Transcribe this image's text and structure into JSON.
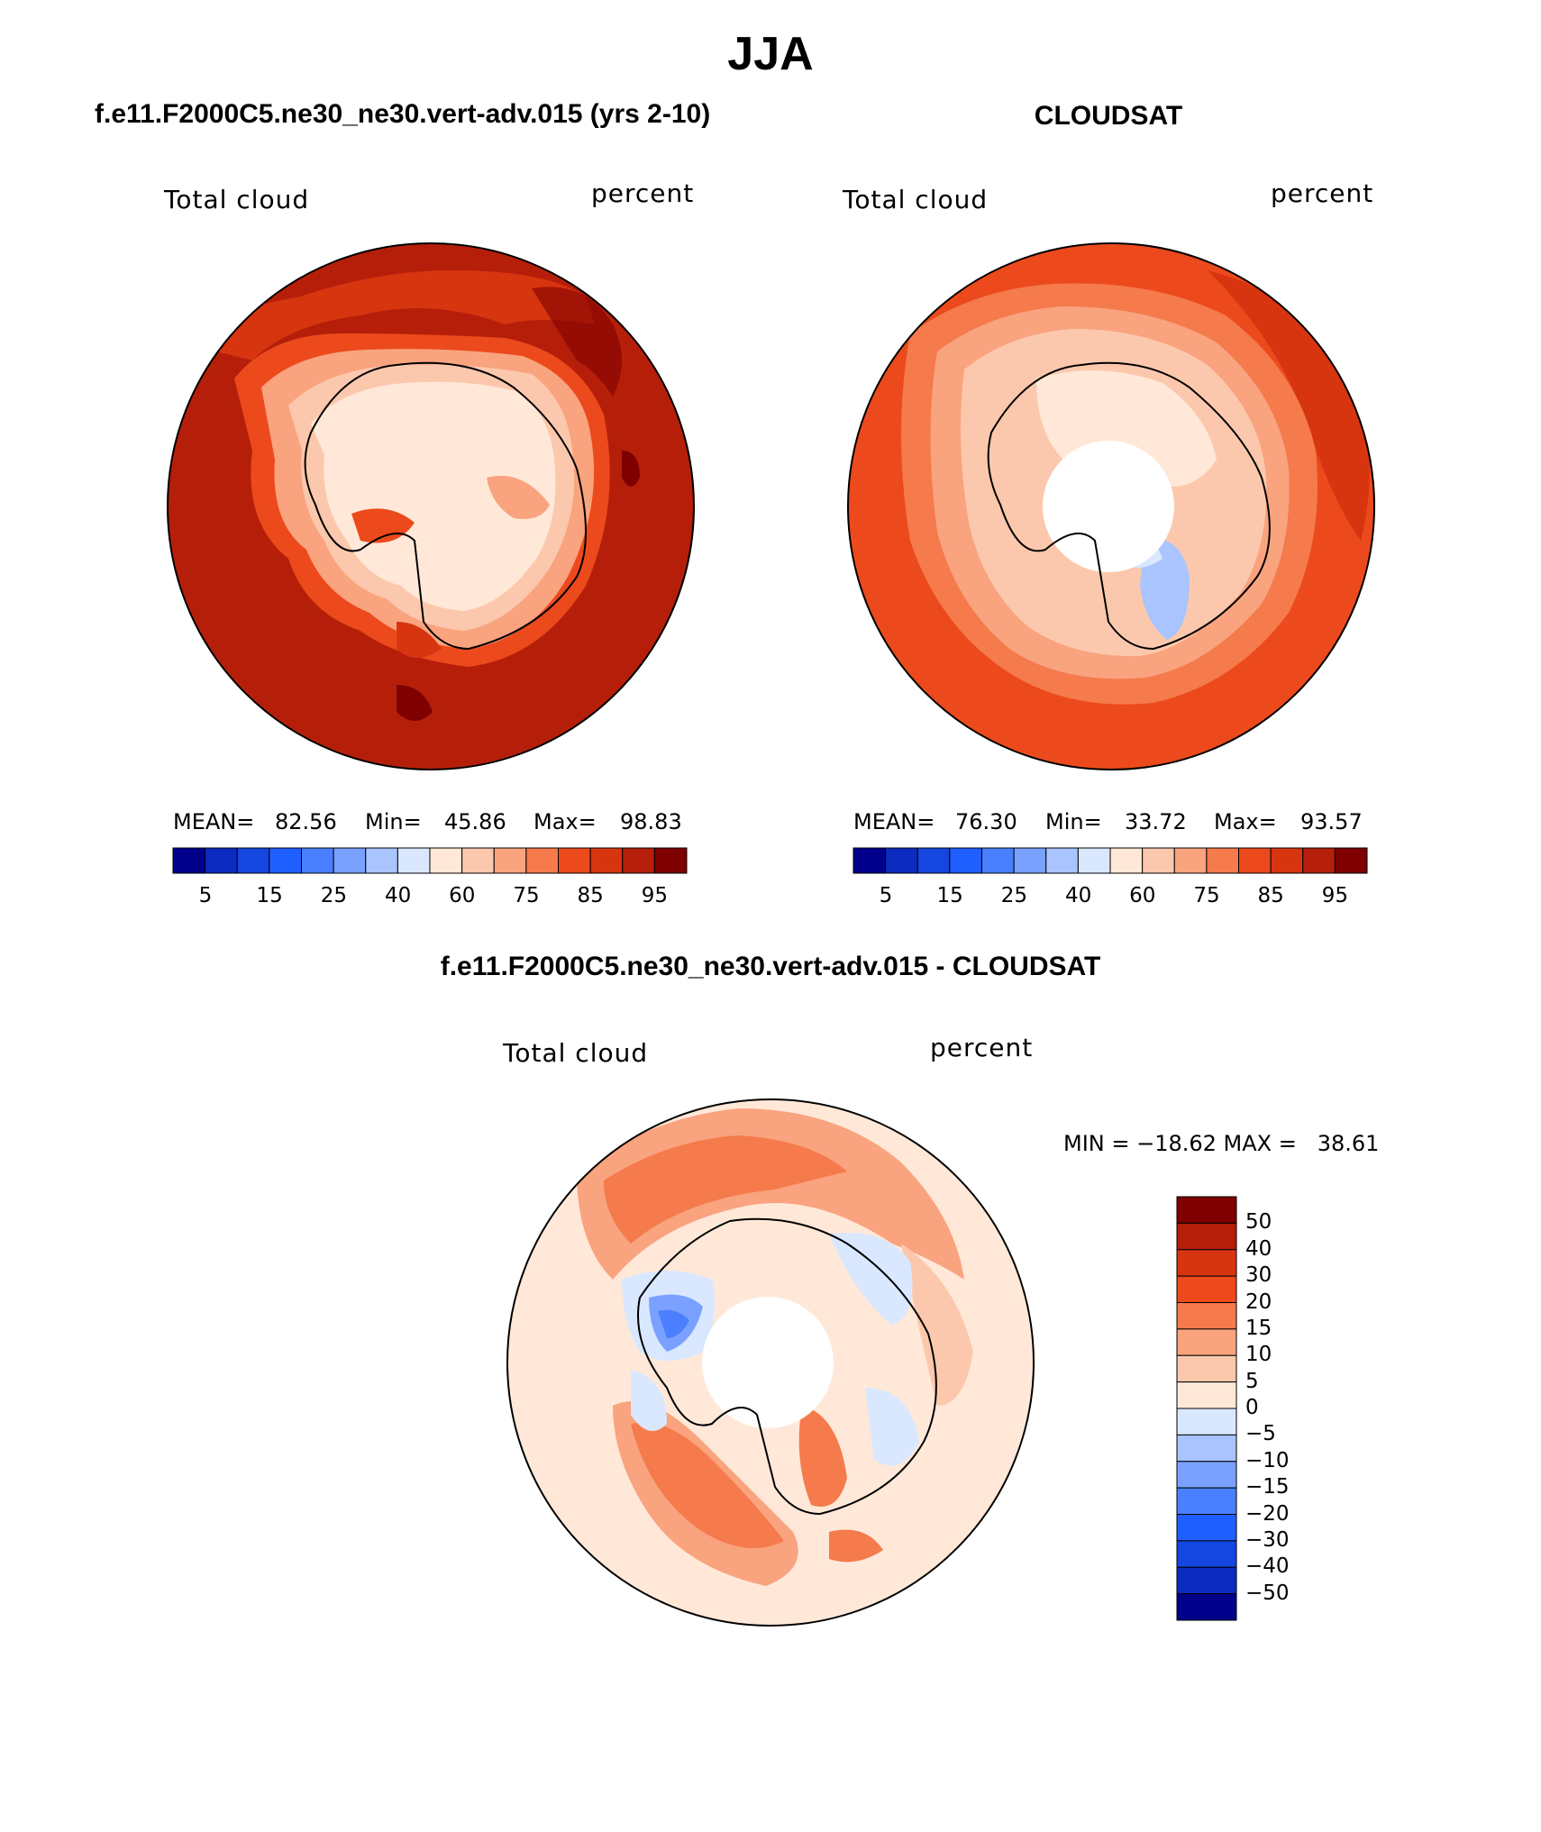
{
  "main_title": "JJA",
  "panel_left": {
    "title": "f.e11.F2000C5.ne30_ne30.vert-adv.015 (yrs 2-10)",
    "variable": "Total cloud",
    "units": "percent",
    "mean_label": "MEAN=",
    "mean": "82.56",
    "min_label": "Min=",
    "min": "45.86",
    "max_label": "Max=",
    "max": "98.83"
  },
  "panel_right": {
    "title": "CLOUDSAT",
    "variable": "Total cloud",
    "units": "percent",
    "mean_label": "MEAN=",
    "mean": "76.30",
    "min_label": "Min=",
    "min": "33.72",
    "max_label": "Max=",
    "max": "93.57"
  },
  "panel_diff": {
    "title": "f.e11.F2000C5.ne30_ne30.vert-adv.015 - CLOUDSAT",
    "variable": "Total cloud",
    "units": "percent",
    "minmax": "MIN = −18.62 MAX =   38.61"
  },
  "colorbar_abs": {
    "colors": [
      "#00008b",
      "#0c2bc0",
      "#1446e0",
      "#1f5fff",
      "#4a80ff",
      "#7aa1ff",
      "#a9c4ff",
      "#d9e8ff",
      "#ffe8d8",
      "#fcc8ad",
      "#f9a37f",
      "#f57a4c",
      "#ec4a1c",
      "#d73510",
      "#b51f0a",
      "#7f0000"
    ],
    "tick_labels": [
      "5",
      "15",
      "25",
      "40",
      "60",
      "75",
      "85",
      "95"
    ]
  },
  "colorbar_diff": {
    "colors": [
      "#00008b",
      "#0c2bc0",
      "#1446e0",
      "#1f5fff",
      "#4a80ff",
      "#7aa1ff",
      "#a9c4ff",
      "#d9e8ff",
      "#ffe8d8",
      "#fcc8ad",
      "#f9a37f",
      "#f57a4c",
      "#ec4a1c",
      "#d73510",
      "#b51f0a",
      "#7f0000"
    ],
    "tick_labels": [
      "50",
      "40",
      "30",
      "20",
      "15",
      "10",
      "5",
      "0",
      "−5",
      "−10",
      "−15",
      "−20",
      "−30",
      "−40",
      "−50"
    ]
  }
}
